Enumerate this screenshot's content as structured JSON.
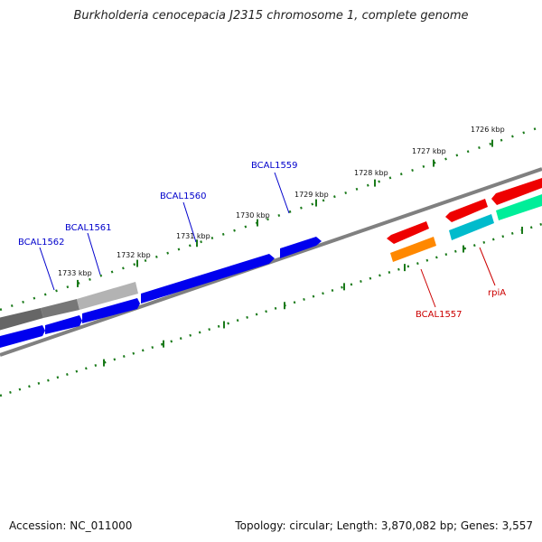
{
  "title": "Burkholderia cenocepacia J2315 chromosome 1, complete genome",
  "footer": {
    "accession": "Accession: NC_011000",
    "summary": "Topology: circular; Length: 3,870,082 bp; Genes: 3,557"
  },
  "colors": {
    "background": "#ffffff",
    "backbone": "#808080",
    "tick": "#1a7a1a",
    "label_blue": "#0000cc",
    "label_red": "#cc0000",
    "cds_blue": "#0000ee",
    "cds_red": "#ee0000",
    "cds_orange": "#ff8800",
    "cds_cyan": "#00bbcc",
    "cds_green": "#00ee99",
    "gc_dark": "#666666",
    "gc_light": "#b3b3b3"
  },
  "ticks": [
    {
      "label": "1726 kbp"
    },
    {
      "label": "1727 kbp"
    },
    {
      "label": "1728 kbp"
    },
    {
      "label": "1729 kbp"
    },
    {
      "label": "1730 kbp"
    },
    {
      "label": "1731 kbp"
    },
    {
      "label": "1732 kbp"
    },
    {
      "label": "1733 kbp"
    }
  ],
  "gene_labels": [
    {
      "text": "BCAL1559"
    },
    {
      "text": "BCAL1560"
    },
    {
      "text": "BCAL1561"
    },
    {
      "text": "BCAL1562"
    },
    {
      "text": "BCAL1557"
    },
    {
      "text": "rpiA"
    }
  ]
}
